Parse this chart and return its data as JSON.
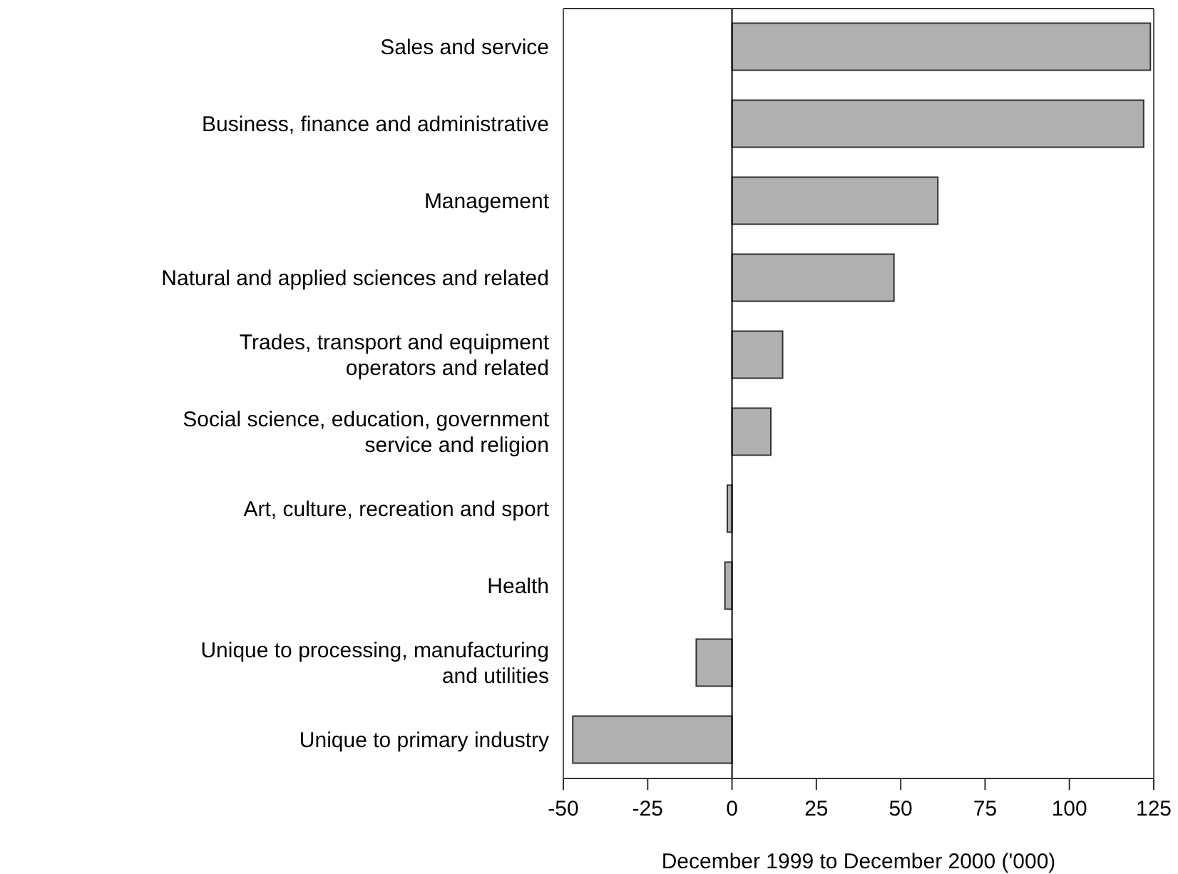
{
  "chart_data": {
    "type": "bar",
    "orientation": "horizontal",
    "categories": [
      "Sales and service",
      "Business, finance and administrative",
      "Management",
      "Natural and applied sciences and related",
      "Trades, transport and equipment\noperators and related",
      "Social science, education, government\nservice and religion",
      "Art, culture, recreation and sport",
      "Health",
      "Unique to processing, manufacturing\nand utilities",
      "Unique to primary industry"
    ],
    "values": [
      124,
      122,
      61,
      48,
      15,
      11.5,
      -1.4,
      -2.1,
      -10.6,
      -47.2
    ],
    "color": "#b0b0b0",
    "xlabel": "December 1999 to December 2000 ('000)",
    "xlim": [
      -50,
      125
    ],
    "xticks": [
      -50,
      -25,
      0,
      25,
      50,
      75,
      100,
      125
    ]
  }
}
